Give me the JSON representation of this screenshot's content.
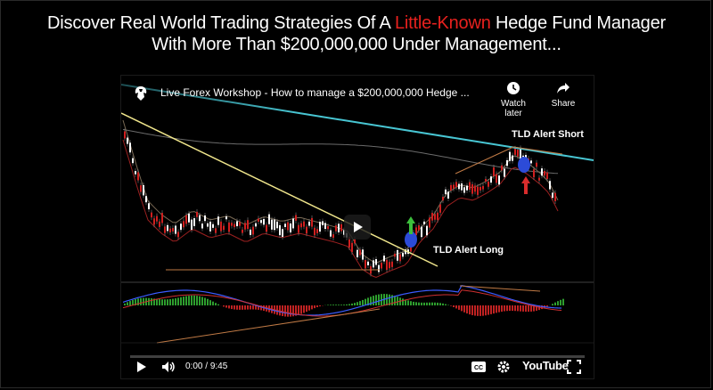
{
  "headline": {
    "line1_prefix": "Discover Real World Trading Strategies Of A ",
    "line1_highlight": "Little-Known",
    "line1_suffix": " Hedge Fund Manager",
    "line2": "With More Than $200,000,000 Under Management..."
  },
  "video": {
    "title": "Live Forex Workshop - How to manage a $200,000,000 Hedge ...",
    "actions": [
      {
        "label": "Watch later",
        "icon": "clock-icon"
      },
      {
        "label": "Share",
        "icon": "share-icon"
      }
    ],
    "time_current": "0:00",
    "time_separator": " / ",
    "time_total": "9:45",
    "progress": 0.0,
    "brand": "YouTube",
    "annotations": {
      "short": "TLD Alert Short",
      "long": "TLD Alert Long"
    }
  },
  "colors": {
    "highlight": "#e8211e",
    "progress": "#ff0000",
    "trendline_cyan": "#48c6d3",
    "trendline_yellow": "#f0e68c",
    "bull_candle": "#ffffff",
    "bear_candle": "#d01f1f"
  }
}
